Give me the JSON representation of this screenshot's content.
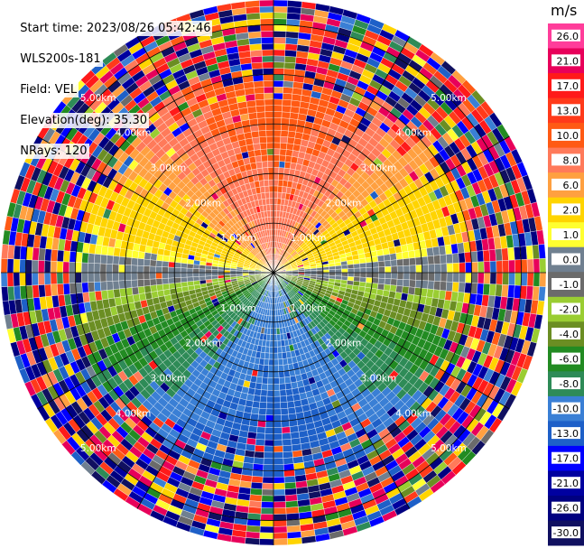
{
  "info": {
    "start_time": "Start time: 2023/08/26 05:42:46",
    "site": "WLS200s-181",
    "field": "Field: VEL",
    "elevation": "Elevation(deg): 35.30",
    "nrays": "NRays: 120"
  },
  "colorbar": {
    "unit": "m/s",
    "tick_labels": [
      "26.0",
      "21.0",
      "17.0",
      "13.0",
      "10.0",
      "8.0",
      "6.0",
      "2.0",
      "1.0",
      "0.0",
      "-1.0",
      "-2.0",
      "-4.0",
      "-6.0",
      "-8.0",
      "-10.0",
      "-13.0",
      "-17.0",
      "-21.0",
      "-26.0",
      "-30.0"
    ],
    "colors": [
      "#ff3d9a",
      "#e8005a",
      "#ff1a1a",
      "#ff3a1a",
      "#ff5a14",
      "#ff7a5a",
      "#ffa040",
      "#ffd400",
      "#ffff30",
      "#708090",
      "#6b6b6b",
      "#9acd32",
      "#6b8e23",
      "#228b22",
      "#2e8b57",
      "#3a7fd5",
      "#1e60c8",
      "#0000ff",
      "#0000a0",
      "#000080",
      "#101060"
    ]
  },
  "rings": {
    "labels": [
      "1.00km",
      "2.00km",
      "3.00km",
      "4.00km",
      "5.00km"
    ]
  },
  "chart_data": {
    "type": "heatmap",
    "title": "",
    "projection": "polar (PPI)",
    "field": "VEL",
    "units": "m/s",
    "range_rings_km": [
      1,
      2,
      3,
      4,
      5
    ],
    "nrays": 120,
    "color_scale": {
      "min": -30.0,
      "max": 26.0,
      "ticks": [
        26,
        21,
        17,
        13,
        10,
        8,
        6,
        2,
        1,
        0,
        -1,
        -2,
        -4,
        -6,
        -8,
        -10,
        -13,
        -17,
        -21,
        -26,
        -30
      ]
    },
    "pattern_summary": [
      {
        "region": "north, 1-4 km",
        "approx_velocity": 10.0
      },
      {
        "region": "northeast, 2-4 km",
        "approx_velocity": 6.0
      },
      {
        "region": "center band east-west",
        "approx_velocity": 0.0
      },
      {
        "region": "south-west, 1-3 km",
        "approx_velocity": -4.0
      },
      {
        "region": "south, 2-4 km",
        "approx_velocity": -8.0
      },
      {
        "region": "outer ring > 4 km",
        "approx_velocity": "noisy"
      }
    ]
  }
}
